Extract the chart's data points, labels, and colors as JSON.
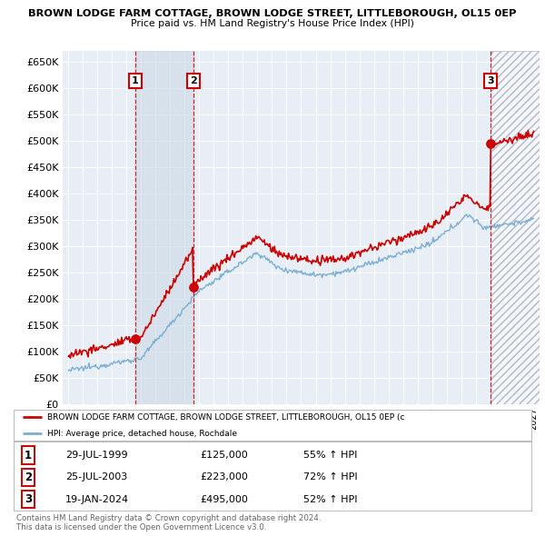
{
  "title1": "BROWN LODGE FARM COTTAGE, BROWN LODGE STREET, LITTLEBOROUGH, OL15 0EP",
  "title2": "Price paid vs. HM Land Registry's House Price Index (HPI)",
  "legend_line1": "BROWN LODGE FARM COTTAGE, BROWN LODGE STREET, LITTLEBOROUGH, OL15 0EP (c",
  "legend_line2": "HPI: Average price, detached house, Rochdale",
  "footer1": "Contains HM Land Registry data © Crown copyright and database right 2024.",
  "footer2": "This data is licensed under the Open Government Licence v3.0.",
  "transactions": [
    {
      "num": "1",
      "date": "29-JUL-1999",
      "price": "£125,000",
      "hpi": "55% ↑ HPI",
      "year": 1999.57
    },
    {
      "num": "2",
      "date": "25-JUL-2003",
      "price": "£223,000",
      "hpi": "72% ↑ HPI",
      "year": 2003.57
    },
    {
      "num": "3",
      "date": "19-JAN-2024",
      "price": "£495,000",
      "hpi": "52% ↑ HPI",
      "year": 2024.05
    }
  ],
  "transaction_values": [
    125000,
    223000,
    495000
  ],
  "transaction_years": [
    1999.57,
    2003.57,
    2024.05
  ],
  "ylim": [
    0,
    670000
  ],
  "xlim_start": 1994.6,
  "xlim_end": 2027.4,
  "red_color": "#cc0000",
  "blue_color": "#7BAFD4",
  "bg_color": "#e8eef5",
  "shade_color": "#d0dce8",
  "grid_color": "#ffffff"
}
